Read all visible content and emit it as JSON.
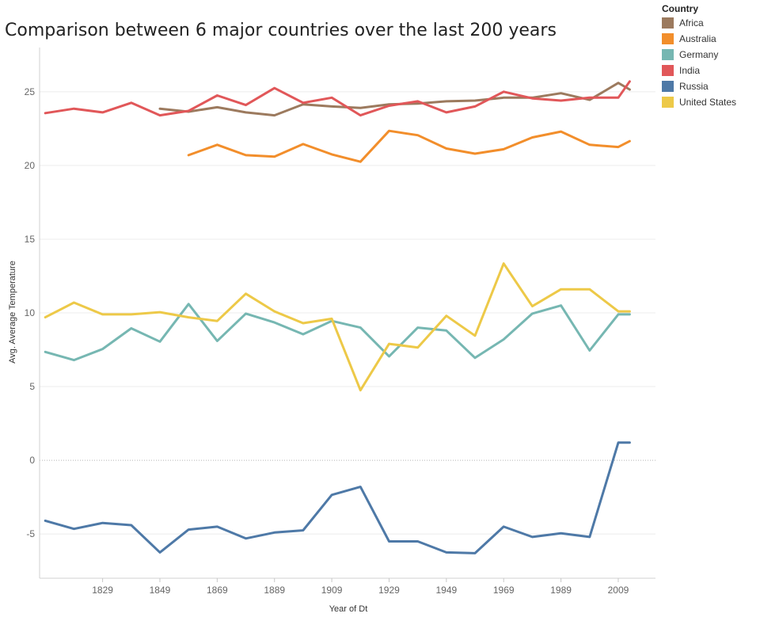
{
  "title": "Comparison between 6 major countries over the last 200 years",
  "legend": {
    "title": "Country",
    "placement": "top-right",
    "items": [
      {
        "label": "Africa",
        "color": "#9c7a5e"
      },
      {
        "label": "Australia",
        "color": "#f28e2b"
      },
      {
        "label": "Germany",
        "color": "#76b7b2"
      },
      {
        "label": "India",
        "color": "#e15759"
      },
      {
        "label": "Russia",
        "color": "#4e79a7"
      },
      {
        "label": "United States",
        "color": "#edc948"
      }
    ]
  },
  "chart_data": {
    "type": "line",
    "title": "Comparison between 6 major countries over the last 200 years",
    "xlabel": "Year of Dt",
    "ylabel": "Avg. Average Temperature",
    "x_ticks": [
      1829,
      1849,
      1869,
      1889,
      1909,
      1929,
      1949,
      1969,
      1989,
      2009
    ],
    "y_ticks": [
      -5,
      0,
      5,
      10,
      15,
      20,
      25
    ],
    "xlim": [
      1807,
      2022
    ],
    "ylim": [
      -8,
      28
    ],
    "grid": true,
    "zero_line": "dotted",
    "series": [
      {
        "name": "Africa",
        "color": "#9c7a5e",
        "x": [
          1849,
          1859,
          1869,
          1879,
          1889,
          1899,
          1909,
          1919,
          1929,
          1939,
          1949,
          1959,
          1969,
          1979,
          1989,
          1999,
          2009,
          2013
        ],
        "y": [
          23.85,
          23.65,
          23.95,
          23.6,
          23.4,
          24.15,
          24.0,
          23.9,
          24.15,
          24.2,
          24.35,
          24.4,
          24.6,
          24.6,
          24.9,
          24.45,
          25.6,
          25.15
        ]
      },
      {
        "name": "Australia",
        "color": "#f28e2b",
        "x": [
          1859,
          1869,
          1879,
          1889,
          1899,
          1909,
          1919,
          1929,
          1939,
          1949,
          1959,
          1969,
          1979,
          1989,
          1999,
          2009,
          2013
        ],
        "y": [
          20.7,
          21.4,
          20.7,
          20.6,
          21.45,
          20.75,
          20.25,
          22.35,
          22.05,
          21.15,
          20.8,
          21.1,
          21.9,
          22.3,
          21.4,
          21.25,
          21.65
        ]
      },
      {
        "name": "Germany",
        "color": "#76b7b2",
        "x": [
          1809,
          1819,
          1829,
          1839,
          1849,
          1859,
          1869,
          1879,
          1889,
          1899,
          1909,
          1919,
          1929,
          1939,
          1949,
          1959,
          1969,
          1979,
          1989,
          1999,
          2009,
          2013
        ],
        "y": [
          7.35,
          6.8,
          7.55,
          8.95,
          8.05,
          10.6,
          8.1,
          9.95,
          9.35,
          8.55,
          9.45,
          9.0,
          7.05,
          9.0,
          8.8,
          6.95,
          8.2,
          9.95,
          10.5,
          7.45,
          9.9,
          9.9
        ]
      },
      {
        "name": "India",
        "color": "#e15759",
        "x": [
          1809,
          1819,
          1829,
          1839,
          1849,
          1859,
          1869,
          1879,
          1889,
          1899,
          1909,
          1919,
          1929,
          1939,
          1949,
          1959,
          1969,
          1979,
          1989,
          1999,
          2009,
          2013
        ],
        "y": [
          23.55,
          23.85,
          23.6,
          24.25,
          23.4,
          23.7,
          24.75,
          24.1,
          25.25,
          24.25,
          24.6,
          23.4,
          24.05,
          24.35,
          23.6,
          24.0,
          25.0,
          24.55,
          24.4,
          24.6,
          24.6,
          25.7
        ]
      },
      {
        "name": "Russia",
        "color": "#4e79a7",
        "x": [
          1809,
          1819,
          1829,
          1839,
          1849,
          1859,
          1869,
          1879,
          1889,
          1899,
          1909,
          1919,
          1929,
          1939,
          1949,
          1959,
          1969,
          1979,
          1989,
          1999,
          2009,
          2013
        ],
        "y": [
          -4.1,
          -4.65,
          -4.25,
          -4.4,
          -6.25,
          -4.7,
          -4.5,
          -5.3,
          -4.9,
          -4.75,
          -2.35,
          -1.8,
          -5.5,
          -5.5,
          -6.25,
          -6.3,
          -4.5,
          -5.2,
          -4.95,
          -5.2,
          1.2,
          1.2
        ]
      },
      {
        "name": "United States",
        "color": "#edc948",
        "x": [
          1809,
          1819,
          1829,
          1839,
          1849,
          1859,
          1869,
          1879,
          1889,
          1899,
          1909,
          1919,
          1929,
          1939,
          1949,
          1959,
          1969,
          1979,
          1989,
          1999,
          2009,
          2013
        ],
        "y": [
          9.7,
          10.7,
          9.9,
          9.9,
          10.05,
          9.7,
          9.45,
          11.3,
          10.1,
          9.3,
          9.6,
          4.75,
          7.9,
          7.65,
          9.8,
          8.45,
          13.35,
          10.45,
          11.6,
          11.6,
          10.1,
          10.1
        ]
      }
    ]
  }
}
